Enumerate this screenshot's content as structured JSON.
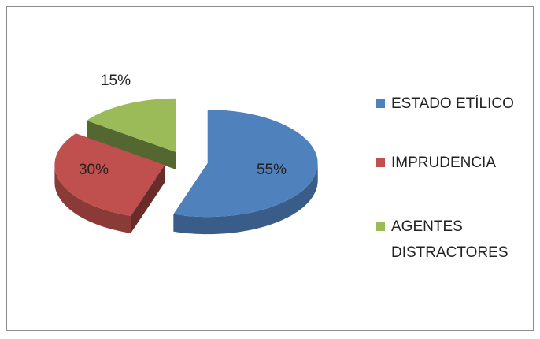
{
  "chart_data": {
    "type": "pie",
    "categories": [
      "ESTADO ETÍLICO",
      "IMPRUDENCIA",
      "AGENTES DISTRACTORES"
    ],
    "values": [
      55,
      30,
      15
    ],
    "value_labels": [
      "55%",
      "30%",
      "15%"
    ],
    "colors": [
      "#4f81bd",
      "#c0504d",
      "#9bbb59"
    ],
    "legend": "right"
  }
}
